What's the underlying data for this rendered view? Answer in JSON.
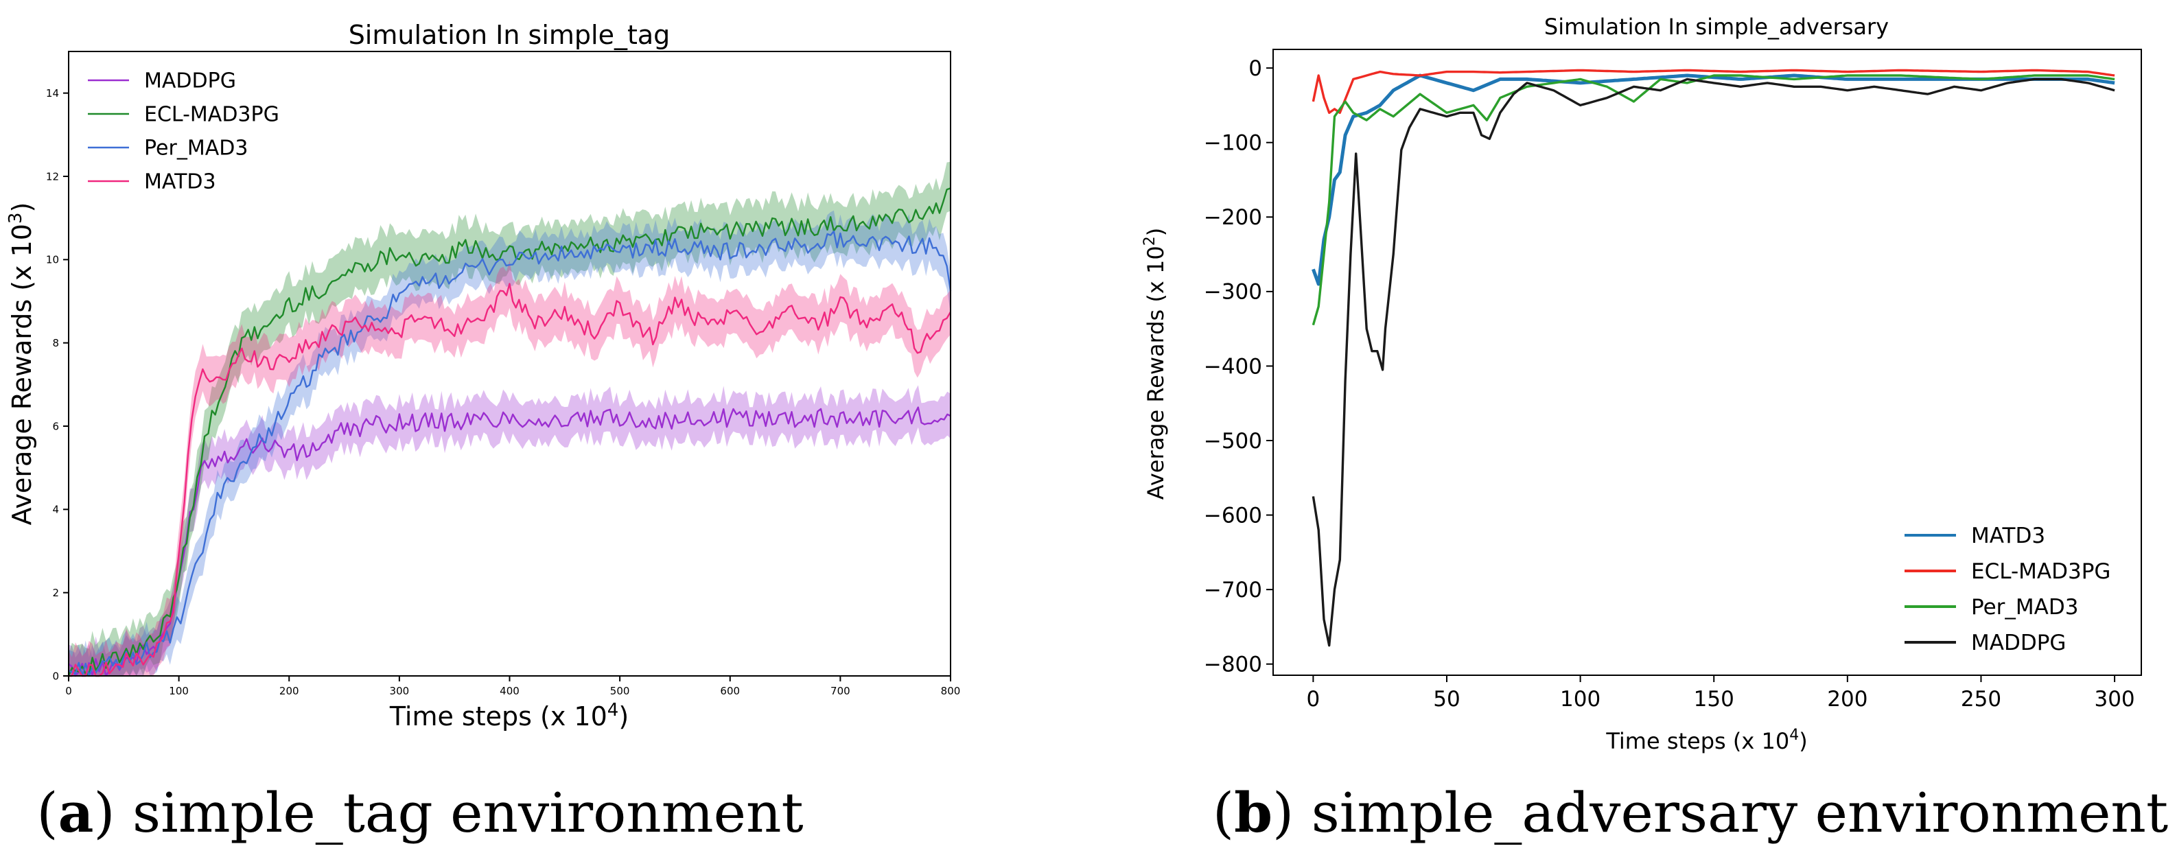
{
  "figure": {
    "caption_a": {
      "letter": "a",
      "text": " simple_tag environment"
    },
    "caption_b": {
      "letter": "b",
      "text": " simple_adversary environment"
    }
  },
  "colors": {
    "MADDPG_a": "#9b2fd0",
    "ECL-MAD3PG_a": "#1f8a2a",
    "Per_MAD3_a": "#3e6fd6",
    "MATD3_a": "#f0287f",
    "MATD3_b": "#1f77b4",
    "ECL-MAD3PG_b": "#ef2b23",
    "Per_MAD3_b": "#2ca02c",
    "MADDPG_b": "#1a1a1a"
  },
  "chart_data": [
    {
      "type": "line",
      "title": "Simulation In simple_tag",
      "xlabel": "Time steps (x 10",
      "xlabel_sup": "4",
      "xlabel_end": ")",
      "ylabel": "Average Rewards (x 10",
      "ylabel_sup": "3",
      "ylabel_end": ")",
      "xlim": [
        0,
        800
      ],
      "ylim": [
        0,
        15
      ],
      "xticks": [
        0,
        100,
        200,
        300,
        400,
        500,
        600,
        700,
        800
      ],
      "yticks": [
        0,
        2,
        4,
        6,
        8,
        10,
        12,
        14
      ],
      "legend": "top-left",
      "series": [
        {
          "name": "MADDPG",
          "color_key": "MADDPG_a",
          "band": 0.5,
          "x": [
            0,
            40,
            80,
            95,
            110,
            120,
            130,
            150,
            170,
            190,
            210,
            230,
            250,
            270,
            300,
            350,
            400,
            450,
            500,
            550,
            600,
            650,
            700,
            750,
            800
          ],
          "y": [
            0.1,
            0.25,
            0.7,
            1.5,
            3.8,
            5.0,
            5.2,
            5.4,
            5.6,
            5.5,
            5.3,
            5.6,
            5.9,
            6.0,
            6.1,
            6.1,
            6.2,
            6.1,
            6.2,
            6.1,
            6.2,
            6.2,
            6.2,
            6.2,
            6.3
          ]
        },
        {
          "name": "ECL-MAD3PG",
          "color_key": "ECL-MAD3PG_a",
          "band": 0.6,
          "x": [
            0,
            40,
            80,
            95,
            110,
            120,
            130,
            145,
            160,
            180,
            200,
            230,
            260,
            280,
            300,
            330,
            360,
            400,
            450,
            500,
            550,
            600,
            650,
            700,
            750,
            790,
            800
          ],
          "y": [
            0.15,
            0.35,
            0.85,
            1.8,
            3.8,
            5.2,
            6.2,
            7.3,
            8.1,
            8.4,
            8.9,
            9.3,
            9.8,
            10.0,
            10.2,
            9.9,
            10.3,
            10.1,
            10.3,
            10.4,
            10.6,
            10.7,
            10.8,
            10.8,
            11.0,
            11.2,
            11.6
          ]
        },
        {
          "name": "Per_MAD3",
          "color_key": "Per_MAD3_a",
          "band": 0.5,
          "x": [
            0,
            40,
            80,
            95,
            105,
            115,
            125,
            135,
            150,
            170,
            190,
            210,
            230,
            250,
            280,
            300,
            330,
            360,
            400,
            450,
            500,
            550,
            600,
            650,
            700,
            750,
            790,
            800
          ],
          "y": [
            0.1,
            0.25,
            0.7,
            1.0,
            1.6,
            2.5,
            3.4,
            4.2,
            4.9,
            5.5,
            6.2,
            6.9,
            7.6,
            8.0,
            8.6,
            9.1,
            9.5,
            9.7,
            10.0,
            10.1,
            10.2,
            10.3,
            10.2,
            10.3,
            10.5,
            10.4,
            10.3,
            9.4
          ]
        },
        {
          "name": "MATD3",
          "color_key": "MATD3_a",
          "band": 0.55,
          "x": [
            0,
            40,
            80,
            95,
            105,
            115,
            125,
            140,
            160,
            180,
            200,
            230,
            260,
            290,
            320,
            350,
            380,
            400,
            420,
            450,
            480,
            500,
            530,
            550,
            580,
            600,
            630,
            650,
            680,
            700,
            730,
            750,
            770,
            790,
            800
          ],
          "y": [
            0.05,
            0.2,
            0.6,
            1.5,
            4.3,
            6.9,
            7.3,
            7.1,
            7.8,
            7.5,
            7.7,
            8.1,
            8.6,
            8.2,
            8.6,
            8.3,
            8.8,
            9.2,
            8.5,
            8.7,
            8.2,
            8.9,
            8.1,
            9.0,
            8.3,
            8.7,
            8.3,
            8.9,
            8.4,
            8.9,
            8.5,
            8.9,
            7.9,
            8.4,
            8.6
          ]
        }
      ]
    },
    {
      "type": "line",
      "title": "Simulation In simple_adversary",
      "xlabel": "Time steps (x 10",
      "xlabel_sup": "4",
      "xlabel_end": ")",
      "ylabel": "Average Rewards (x 10",
      "ylabel_sup": "2",
      "ylabel_end": ")",
      "xlim": [
        -15,
        310
      ],
      "ylim": [
        -815,
        25
      ],
      "xticks": [
        0,
        50,
        100,
        150,
        200,
        250,
        300
      ],
      "yticks": [
        0,
        -100,
        -200,
        -300,
        -400,
        -500,
        -600,
        -700,
        -800
      ],
      "legend": "bottom-right",
      "series": [
        {
          "name": "MATD3",
          "color_key": "MATD3_b",
          "x": [
            0,
            2,
            4,
            6,
            8,
            10,
            12,
            15,
            20,
            25,
            30,
            35,
            40,
            50,
            60,
            70,
            80,
            100,
            120,
            140,
            160,
            180,
            200,
            220,
            250,
            270,
            290,
            300
          ],
          "y": [
            -270,
            -290,
            -230,
            -200,
            -150,
            -140,
            -90,
            -65,
            -60,
            -50,
            -30,
            -20,
            -10,
            -20,
            -30,
            -15,
            -15,
            -20,
            -15,
            -10,
            -15,
            -10,
            -15,
            -15,
            -15,
            -15,
            -15,
            -20
          ]
        },
        {
          "name": "ECL-MAD3PG",
          "color_key": "ECL-MAD3PG_b",
          "x": [
            0,
            2,
            4,
            6,
            8,
            10,
            15,
            20,
            25,
            30,
            40,
            50,
            60,
            70,
            80,
            100,
            120,
            140,
            160,
            180,
            200,
            220,
            250,
            270,
            290,
            300
          ],
          "y": [
            -45,
            -10,
            -40,
            -60,
            -55,
            -60,
            -15,
            -10,
            -5,
            -8,
            -10,
            -5,
            -5,
            -6,
            -5,
            -3,
            -5,
            -3,
            -5,
            -3,
            -5,
            -3,
            -5,
            -3,
            -5,
            -10
          ]
        },
        {
          "name": "Per_MAD3",
          "color_key": "Per_MAD3_b",
          "x": [
            0,
            2,
            4,
            6,
            8,
            10,
            12,
            15,
            20,
            25,
            30,
            35,
            40,
            50,
            60,
            65,
            70,
            80,
            90,
            100,
            110,
            120,
            125,
            130,
            140,
            150,
            160,
            180,
            200,
            220,
            250,
            270,
            290,
            300
          ],
          "y": [
            -345,
            -320,
            -250,
            -180,
            -65,
            -55,
            -45,
            -60,
            -70,
            -55,
            -65,
            -50,
            -35,
            -60,
            -50,
            -70,
            -40,
            -25,
            -20,
            -15,
            -25,
            -45,
            -30,
            -15,
            -20,
            -10,
            -10,
            -15,
            -10,
            -10,
            -15,
            -10,
            -10,
            -15
          ]
        },
        {
          "name": "MADDPG",
          "color_key": "MADDPG_b",
          "x": [
            0,
            2,
            4,
            6,
            8,
            10,
            12,
            14,
            16,
            18,
            20,
            22,
            24,
            26,
            27,
            30,
            33,
            36,
            40,
            45,
            50,
            55,
            60,
            63,
            66,
            70,
            75,
            80,
            90,
            100,
            110,
            120,
            130,
            140,
            150,
            160,
            170,
            180,
            190,
            200,
            210,
            220,
            230,
            240,
            250,
            260,
            270,
            280,
            290,
            300
          ],
          "y": [
            -575,
            -620,
            -740,
            -775,
            -700,
            -660,
            -420,
            -250,
            -115,
            -230,
            -350,
            -380,
            -380,
            -405,
            -350,
            -250,
            -110,
            -80,
            -55,
            -60,
            -65,
            -60,
            -60,
            -90,
            -95,
            -60,
            -35,
            -20,
            -30,
            -50,
            -40,
            -25,
            -30,
            -15,
            -20,
            -25,
            -20,
            -25,
            -25,
            -30,
            -25,
            -30,
            -35,
            -25,
            -30,
            -20,
            -15,
            -15,
            -20,
            -30
          ]
        }
      ]
    }
  ]
}
